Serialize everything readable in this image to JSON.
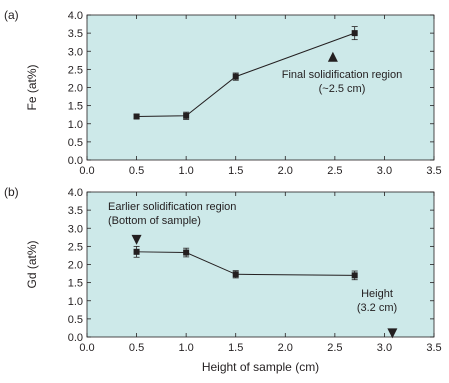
{
  "colors": {
    "plot_background": "#cde9e9",
    "marker": "#231f20",
    "line": "#231f20"
  },
  "chart_data": [
    {
      "type": "line",
      "panel_label": "(a)",
      "xlabel": "",
      "ylabel": "Fe (at%)",
      "xlim": [
        0.0,
        3.5
      ],
      "ylim": [
        0.0,
        4.0
      ],
      "xticks": [
        "0.0",
        "0.5",
        "1.0",
        "1.5",
        "2.0",
        "2.5",
        "3.0",
        "3.5"
      ],
      "yticks": [
        "0.0",
        "0.5",
        "1.0",
        "1.5",
        "2.0",
        "2.5",
        "3.0",
        "3.5",
        "4.0"
      ],
      "grid": false,
      "series": [
        {
          "x": [
            0.5,
            1.0,
            1.5,
            2.7
          ],
          "y": [
            1.2,
            1.22,
            2.3,
            3.5
          ],
          "error": [
            0.05,
            0.1,
            0.1,
            0.18
          ]
        }
      ],
      "annotations": [
        {
          "lines": [
            "Final solidification region",
            "(~2.5 cm)"
          ],
          "marker": "triangle-up",
          "marker_at": [
            2.48,
            2.85
          ]
        }
      ]
    },
    {
      "type": "line",
      "panel_label": "(b)",
      "xlabel": "Height of sample (cm)",
      "ylabel": "Gd (at%)",
      "xlim": [
        0.0,
        3.5
      ],
      "ylim": [
        0.0,
        4.0
      ],
      "xticks": [
        "0.0",
        "0.5",
        "1.0",
        "1.5",
        "2.0",
        "2.5",
        "3.0",
        "3.5"
      ],
      "yticks": [
        "0.0",
        "0.5",
        "1.0",
        "1.5",
        "2.0",
        "2.5",
        "3.0",
        "3.5",
        "4.0"
      ],
      "grid": false,
      "series": [
        {
          "x": [
            0.5,
            1.0,
            1.5,
            2.7
          ],
          "y": [
            2.35,
            2.33,
            1.73,
            1.7
          ],
          "error": [
            0.15,
            0.12,
            0.1,
            0.12
          ]
        }
      ],
      "annotations": [
        {
          "lines": [
            "Earlier solidification region",
            "(Bottom of sample)"
          ],
          "marker": "triangle-down",
          "marker_at": [
            0.5,
            2.68
          ]
        },
        {
          "lines": [
            "Height",
            "(3.2 cm)"
          ],
          "marker": "triangle-down",
          "marker_at": [
            3.08,
            0.1
          ]
        }
      ]
    }
  ]
}
